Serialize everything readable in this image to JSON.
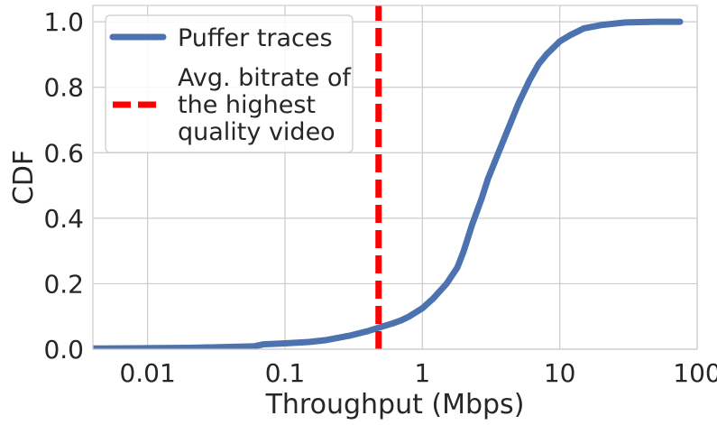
{
  "chart_data": {
    "type": "line",
    "title": "",
    "xlabel": "Throughput (Mbps)",
    "ylabel": "CDF",
    "xscale": "log",
    "xlim": [
      0.004,
      100
    ],
    "ylim": [
      0,
      1.05
    ],
    "grid": true,
    "legend_position": "top-left",
    "x_ticks": [
      {
        "value": 0.01,
        "label": "0.01"
      },
      {
        "value": 0.1,
        "label": "0.1"
      },
      {
        "value": 1,
        "label": "1"
      },
      {
        "value": 10,
        "label": "10"
      },
      {
        "value": 100,
        "label": "100"
      }
    ],
    "y_ticks": [
      {
        "value": 0.0,
        "label": "0.0"
      },
      {
        "value": 0.2,
        "label": "0.2"
      },
      {
        "value": 0.4,
        "label": "0.4"
      },
      {
        "value": 0.6,
        "label": "0.6"
      },
      {
        "value": 0.8,
        "label": "0.8"
      },
      {
        "value": 1.0,
        "label": "1.0"
      }
    ],
    "series": [
      {
        "name": "Puffer traces",
        "color": "#4c72b0",
        "style": "solid",
        "x": [
          0.004,
          0.01,
          0.02,
          0.05,
          0.06,
          0.07,
          0.1,
          0.15,
          0.2,
          0.3,
          0.4,
          0.5,
          0.6,
          0.7,
          0.8,
          1.0,
          1.2,
          1.5,
          1.8,
          2.0,
          2.3,
          2.7,
          3.0,
          3.5,
          4.0,
          5.0,
          6.0,
          7.0,
          8.0,
          10.0,
          12.0,
          15.0,
          20.0,
          30.0,
          50.0,
          75.0
        ],
        "y": [
          0.002,
          0.003,
          0.004,
          0.008,
          0.009,
          0.015,
          0.018,
          0.022,
          0.028,
          0.042,
          0.055,
          0.068,
          0.078,
          0.088,
          0.1,
          0.125,
          0.155,
          0.2,
          0.25,
          0.3,
          0.38,
          0.46,
          0.52,
          0.59,
          0.65,
          0.75,
          0.82,
          0.87,
          0.9,
          0.94,
          0.96,
          0.98,
          0.99,
          0.998,
          1.0,
          1.0
        ]
      },
      {
        "name": "Avg. bitrate of\nthe highest\nquality video",
        "color": "#ff0000",
        "style": "dashed",
        "x": [
          0.48,
          0.48
        ],
        "y": [
          0,
          1.05
        ]
      }
    ]
  }
}
